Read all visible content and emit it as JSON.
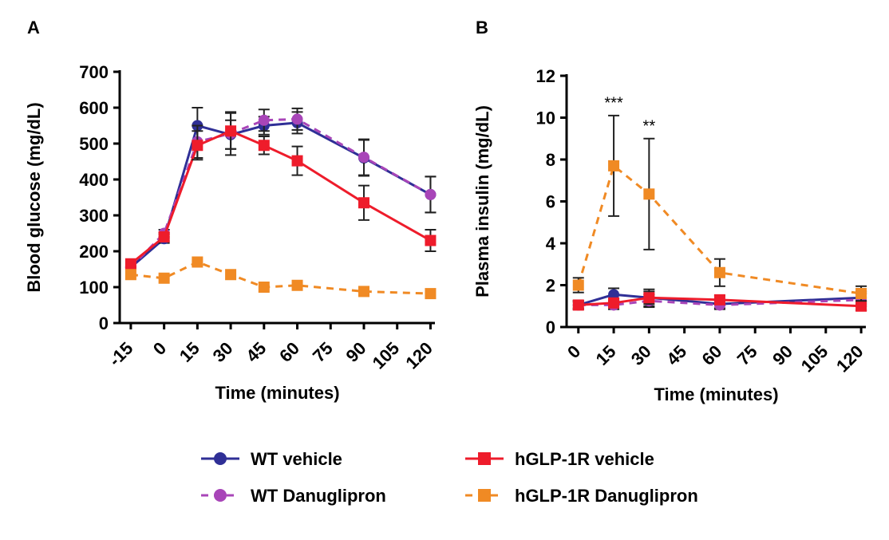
{
  "panels": [
    {
      "letter": "A",
      "chart_data": {
        "type": "line",
        "x": [
          -15,
          0,
          15,
          30,
          45,
          60,
          90,
          120
        ],
        "xticks": [
          -15,
          0,
          15,
          30,
          45,
          60,
          75,
          90,
          105,
          120
        ],
        "xtick_labels": [
          "-15",
          "0",
          "15",
          "30",
          "45",
          "60",
          "75",
          "90",
          "105",
          "120"
        ],
        "xlim": [
          -20,
          122
        ],
        "yticks": [
          0,
          100,
          200,
          300,
          400,
          500,
          600,
          700
        ],
        "ytick_labels": [
          "0",
          "100",
          "200",
          "300",
          "400",
          "500",
          "600",
          "700"
        ],
        "ylim": [
          0,
          700
        ],
        "xlabel": "Time (minutes)",
        "ylabel": "Blood glucose (mg/dL)",
        "series": [
          {
            "key": "wt_vehicle",
            "values": [
              155,
              235,
              550,
              525,
              550,
              558,
              460,
              358
            ],
            "err": [
              0,
              12,
              50,
              40,
              25,
              30,
              50,
              50
            ]
          },
          {
            "key": "wt_danu",
            "values": [
              155,
              250,
              505,
              528,
              565,
              568,
              462,
              358
            ],
            "err": [
              0,
              10,
              45,
              60,
              30,
              30,
              50,
              50
            ]
          },
          {
            "key": "hglp_vehicle",
            "values": [
              165,
              240,
              495,
              535,
              495,
              452,
              335,
              230
            ],
            "err": [
              0,
              12,
              40,
              50,
              25,
              40,
              48,
              30
            ]
          },
          {
            "key": "hglp_danu",
            "values": [
              135,
              125,
              170,
              135,
              100,
              105,
              88,
              82
            ],
            "err": [
              0,
              0,
              0,
              0,
              0,
              0,
              0,
              0
            ]
          }
        ],
        "annotations": []
      }
    },
    {
      "letter": "B",
      "chart_data": {
        "type": "line",
        "x": [
          0,
          15,
          30,
          60,
          120
        ],
        "xticks": [
          0,
          15,
          30,
          45,
          60,
          75,
          90,
          105,
          120
        ],
        "xtick_labels": [
          "0",
          "15",
          "30",
          "45",
          "60",
          "75",
          "90",
          "105",
          "120"
        ],
        "xlim": [
          -5,
          122
        ],
        "yticks": [
          0,
          2,
          4,
          6,
          8,
          10,
          12
        ],
        "ytick_labels": [
          "0",
          "2",
          "4",
          "6",
          "8",
          "10",
          "12"
        ],
        "ylim": [
          0,
          12
        ],
        "xlabel": "Time (minutes)",
        "ylabel": "Plasma insulin (mg/dL)",
        "series": [
          {
            "key": "wt_vehicle",
            "values": [
              1.05,
              1.55,
              1.4,
              1.1,
              1.4
            ],
            "err": [
              0.2,
              0.3,
              0.4,
              0.2,
              0.3
            ]
          },
          {
            "key": "wt_danu",
            "values": [
              1.05,
              1.05,
              1.25,
              1.05,
              1.3
            ],
            "err": [
              0.2,
              0.2,
              0.3,
              0.2,
              0.3
            ]
          },
          {
            "key": "hglp_vehicle",
            "values": [
              1.05,
              1.15,
              1.4,
              1.3,
              1.0
            ],
            "err": [
              0.15,
              0.2,
              0.3,
              0.2,
              0.2
            ]
          },
          {
            "key": "hglp_danu",
            "values": [
              2.0,
              7.7,
              6.35,
              2.6,
              1.6
            ],
            "err": [
              0.35,
              2.4,
              2.65,
              0.65,
              0.35
            ]
          }
        ],
        "annotations": [
          {
            "x": 15,
            "y": 10.45,
            "text": "***"
          },
          {
            "x": 30,
            "y": 9.35,
            "text": "**"
          }
        ]
      }
    }
  ],
  "legend": [
    {
      "key": "wt_vehicle",
      "label": "WT vehicle"
    },
    {
      "key": "hglp_vehicle",
      "label": "hGLP-1R vehicle"
    },
    {
      "key": "wt_danu",
      "label": "WT Danuglipron"
    },
    {
      "key": "hglp_danu",
      "label": "hGLP-1R Danuglipron"
    }
  ],
  "styles": {
    "wt_vehicle": {
      "color": "#2f2f96",
      "marker": "circle",
      "dash": false
    },
    "wt_danu": {
      "color": "#a845b8",
      "marker": "circle",
      "dash": true
    },
    "hglp_vehicle": {
      "color": "#ee1c2b",
      "marker": "square",
      "dash": false
    },
    "hglp_danu": {
      "color": "#f08a24",
      "marker": "square",
      "dash": true
    }
  }
}
